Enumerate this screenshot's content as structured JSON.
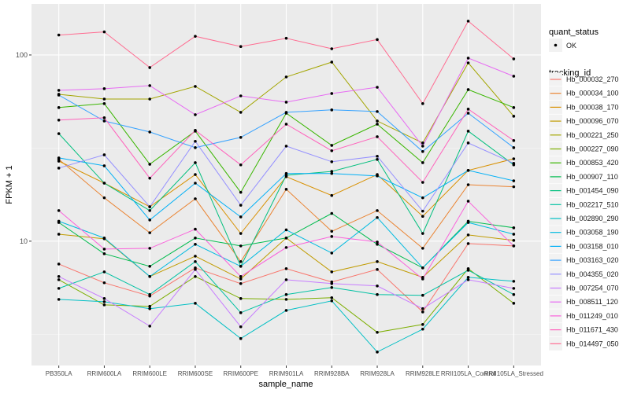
{
  "chart_data": {
    "type": "line",
    "xlabel": "sample_name",
    "ylabel": "FPKM + 1",
    "y_scale": "log10",
    "ylim": [
      2.15,
      188
    ],
    "y_ticks": [
      10,
      100
    ],
    "grid": true,
    "legend_placement": "right",
    "categories": [
      "PB350LA",
      "RRIM600LA",
      "RRIM600LE",
      "RRIM600SE",
      "RRIM600PE",
      "RRIM901LA",
      "RRIM928BA",
      "RRIM928LA",
      "RRIM928LE",
      "RRII105LA_Control",
      "RRII105LA_Stressed"
    ],
    "shape_legend": {
      "title": "quant_status",
      "entries": [
        "OK"
      ]
    },
    "color_legend_title": "tracking_id",
    "series": [
      {
        "name": "Hb_000032_270",
        "color": "#F8766D",
        "values": [
          7.54,
          5.98,
          5.07,
          7.19,
          5.92,
          7.12,
          6.04,
          7.05,
          4.17,
          9.71,
          9.43
        ]
      },
      {
        "name": "Hb_000034_100",
        "color": "#EA8331",
        "values": [
          27.5,
          17.1,
          11.1,
          16.9,
          7.77,
          19.0,
          11.3,
          14.6,
          9.16,
          20.1,
          19.6
        ]
      },
      {
        "name": "Hb_000038_170",
        "color": "#D89000",
        "values": [
          26.9,
          20.5,
          15.3,
          22.8,
          11.0,
          22.2,
          17.6,
          22.8,
          13.6,
          24.0,
          27.7
        ]
      },
      {
        "name": "Hb_000096_070",
        "color": "#C09B00",
        "values": [
          10.9,
          10.3,
          6.46,
          8.31,
          6.27,
          10.4,
          6.84,
          7.77,
          6.4,
          10.8,
          10.1
        ]
      },
      {
        "name": "Hb_000221_250",
        "color": "#A3A500",
        "values": [
          61.5,
          58.0,
          58.0,
          67.8,
          49.2,
          76.2,
          91.6,
          44.2,
          33.7,
          90.7,
          46.9
        ]
      },
      {
        "name": "Hb_000227_090",
        "color": "#7CAE00",
        "values": [
          6.21,
          4.55,
          4.47,
          6.46,
          4.92,
          4.87,
          4.97,
          3.24,
          3.57,
          7.12,
          4.64
        ]
      },
      {
        "name": "Hb_000853_420",
        "color": "#39B600",
        "values": [
          52.2,
          54.8,
          25.9,
          39.0,
          18.3,
          48.7,
          32.7,
          42.5,
          26.4,
          65.2,
          52.2
        ]
      },
      {
        "name": "Hb_000907_110",
        "color": "#00BB4E",
        "values": [
          12.6,
          8.56,
          7.33,
          10.4,
          9.43,
          10.4,
          14.1,
          9.62,
          7.19,
          12.8,
          11.8
        ]
      },
      {
        "name": "Hb_001454_090",
        "color": "#00BF7D",
        "values": [
          37.8,
          20.5,
          14.6,
          26.4,
          7.33,
          22.6,
          23.7,
          27.5,
          11.0,
          39.0,
          25.7
        ]
      },
      {
        "name": "Hb_002217_510",
        "color": "#00C1A3",
        "values": [
          5.58,
          6.84,
          5.17,
          7.77,
          4.13,
          5.17,
          5.64,
          5.17,
          5.12,
          6.98,
          5.17
        ]
      },
      {
        "name": "Hb_002890_290",
        "color": "#00BFC4",
        "values": [
          4.87,
          4.73,
          4.34,
          4.64,
          3.0,
          4.25,
          4.78,
          2.54,
          3.37,
          6.4,
          6.09
        ]
      },
      {
        "name": "Hb_003058_190",
        "color": "#00BAE0",
        "values": [
          12.8,
          10.4,
          6.46,
          9.62,
          7.33,
          11.5,
          8.64,
          13.4,
          7.19,
          12.6,
          10.9
        ]
      },
      {
        "name": "Hb_003158_010",
        "color": "#00B0F6",
        "values": [
          28.0,
          25.4,
          13.0,
          20.5,
          13.5,
          23.1,
          23.1,
          22.4,
          17.1,
          24.0,
          21.1
        ]
      },
      {
        "name": "Hb_003163_020",
        "color": "#35A2FF",
        "values": [
          60.9,
          44.2,
          38.6,
          31.8,
          36.1,
          49.2,
          50.7,
          49.7,
          30.3,
          48.7,
          31.8
        ]
      },
      {
        "name": "Hb_004355_020",
        "color": "#9590FF",
        "values": [
          24.7,
          29.1,
          15.3,
          34.4,
          15.6,
          32.4,
          26.7,
          28.6,
          14.5,
          33.7,
          26.2
        ]
      },
      {
        "name": "Hb_007254_070",
        "color": "#C77CFF",
        "values": [
          6.46,
          4.92,
          3.5,
          7.05,
          3.47,
          6.21,
          5.92,
          5.75,
          4.34,
          6.21,
          5.58
        ]
      },
      {
        "name": "Hb_008511_120",
        "color": "#E76BF3",
        "values": [
          64.6,
          65.9,
          68.5,
          47.8,
          60.3,
          55.8,
          62.1,
          67.1,
          32.4,
          96.2,
          76.9
        ]
      },
      {
        "name": "Hb_011249_010",
        "color": "#FA62DB",
        "values": [
          14.6,
          9.07,
          9.16,
          11.6,
          6.46,
          9.25,
          10.6,
          9.9,
          6.27,
          16.4,
          9.43
        ]
      },
      {
        "name": "Hb_011671_430",
        "color": "#FF62BC",
        "values": [
          44.7,
          46.0,
          21.8,
          39.4,
          25.7,
          42.5,
          30.6,
          36.4,
          20.7,
          51.2,
          34.7
        ]
      },
      {
        "name": "Hb_014497_050",
        "color": "#FF6C91",
        "values": [
          128,
          133,
          85.6,
          126,
          111,
          123,
          108,
          121,
          54.8,
          152,
          95.3
        ]
      }
    ]
  }
}
